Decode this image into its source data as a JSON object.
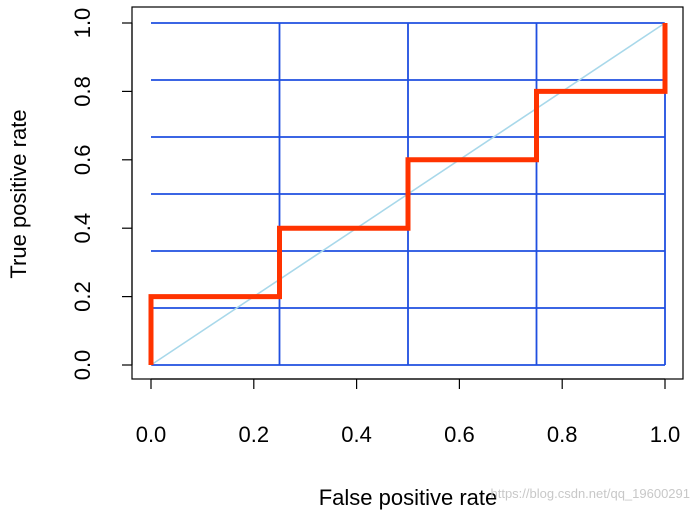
{
  "chart_data": {
    "type": "line",
    "title": "",
    "xlabel": "False positive rate",
    "ylabel": "True positive rate",
    "xlim": [
      0.0,
      1.0
    ],
    "ylim": [
      0.0,
      1.0
    ],
    "x_ticks": [
      "0.0",
      "0.2",
      "0.4",
      "0.6",
      "0.8",
      "1.0"
    ],
    "y_ticks": [
      "0.0",
      "0.2",
      "0.4",
      "0.6",
      "0.8",
      "1.0"
    ],
    "grid": {
      "vertical": [
        0.25,
        0.5,
        0.75,
        1.0
      ],
      "horizontal": [
        0.1667,
        0.3333,
        0.5,
        0.6667,
        0.8333,
        1.0
      ],
      "color": "#1f4fe0"
    },
    "series": [
      {
        "style": "step",
        "color": "#ff3300",
        "x": [
          0.0,
          0.0,
          0.25,
          0.25,
          0.5,
          0.5,
          0.75,
          0.75,
          1.0,
          1.0
        ],
        "y": [
          0.0,
          0.2,
          0.2,
          0.4,
          0.4,
          0.6,
          0.6,
          0.8,
          0.8,
          1.0
        ]
      },
      {
        "style": "diagonal",
        "color": "#a8d8ea",
        "x": [
          0.0,
          1.0
        ],
        "y": [
          0.0,
          1.0
        ]
      }
    ],
    "legend": "none"
  },
  "watermark": "https://blog.csdn.net/qq_19600291"
}
